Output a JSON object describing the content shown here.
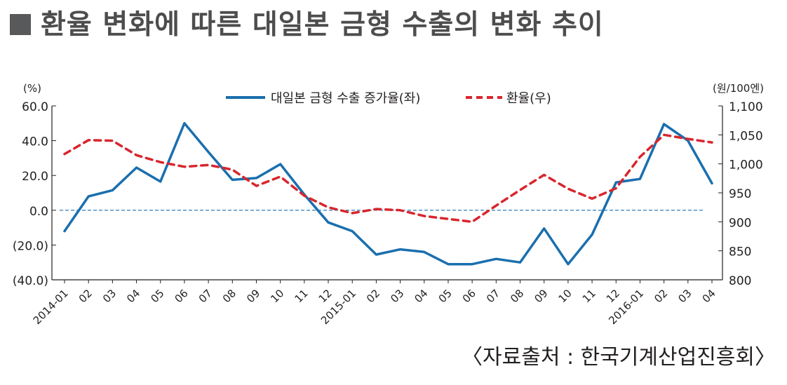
{
  "title": "환율 변화에 따른 대일본 금형 수출의 변화 추이",
  "source": "〈자료출처 : 한국기계산업진흥회〉",
  "colors": {
    "export": "#1a6fae",
    "rate": "#d8262e",
    "baseline": "#1a6fae",
    "axis": "#231f20"
  },
  "chart_data": {
    "type": "line",
    "left_unit": "(%)",
    "right_unit": "(원/100엔)",
    "categories": [
      "2014-01",
      "02",
      "03",
      "04",
      "05",
      "06",
      "07",
      "08",
      "09",
      "10",
      "11",
      "12",
      "2015-01",
      "02",
      "03",
      "04",
      "05",
      "06",
      "07",
      "08",
      "09",
      "10",
      "11",
      "12",
      "2016-01",
      "02",
      "03",
      "04"
    ],
    "left_axis": {
      "min": -40,
      "max": 60,
      "ticks": [
        60,
        40,
        20,
        0,
        -20,
        -40
      ],
      "tick_labels": [
        "60.0",
        "40.0",
        "20.0",
        "0.0",
        "(20.0)",
        "(40.0)"
      ]
    },
    "right_axis": {
      "min": 800,
      "max": 1100,
      "ticks": [
        1100,
        1050,
        1000,
        950,
        900,
        850,
        800
      ],
      "tick_labels": [
        "1,100",
        "1,050",
        "1,000",
        "950",
        "900",
        "850",
        "800"
      ]
    },
    "series": [
      {
        "name": "대일본 금형 수출 증가율(좌)",
        "axis": "left",
        "style": "solid",
        "values": [
          -12,
          8,
          11.5,
          24.5,
          16.5,
          50,
          33.5,
          17.5,
          18.5,
          26.5,
          9,
          -7,
          -12,
          -25.5,
          -22.5,
          -24,
          -31,
          -31,
          -28,
          -30,
          -10.5,
          -31,
          -14,
          16,
          18,
          49.5,
          40,
          15.5
        ]
      },
      {
        "name": "환율(우)",
        "axis": "right",
        "style": "dashed",
        "values": [
          1017,
          1041,
          1040,
          1015,
          1003,
          995,
          998,
          990,
          962,
          978,
          945,
          925,
          915,
          922,
          920,
          910,
          905,
          900,
          928,
          955,
          981,
          957,
          940,
          958,
          1012,
          1050,
          1043,
          1037
        ]
      }
    ],
    "reference_line": {
      "axis": "left",
      "value": 0,
      "style": "dashed"
    },
    "legend_position": "top-center",
    "grid": false
  }
}
